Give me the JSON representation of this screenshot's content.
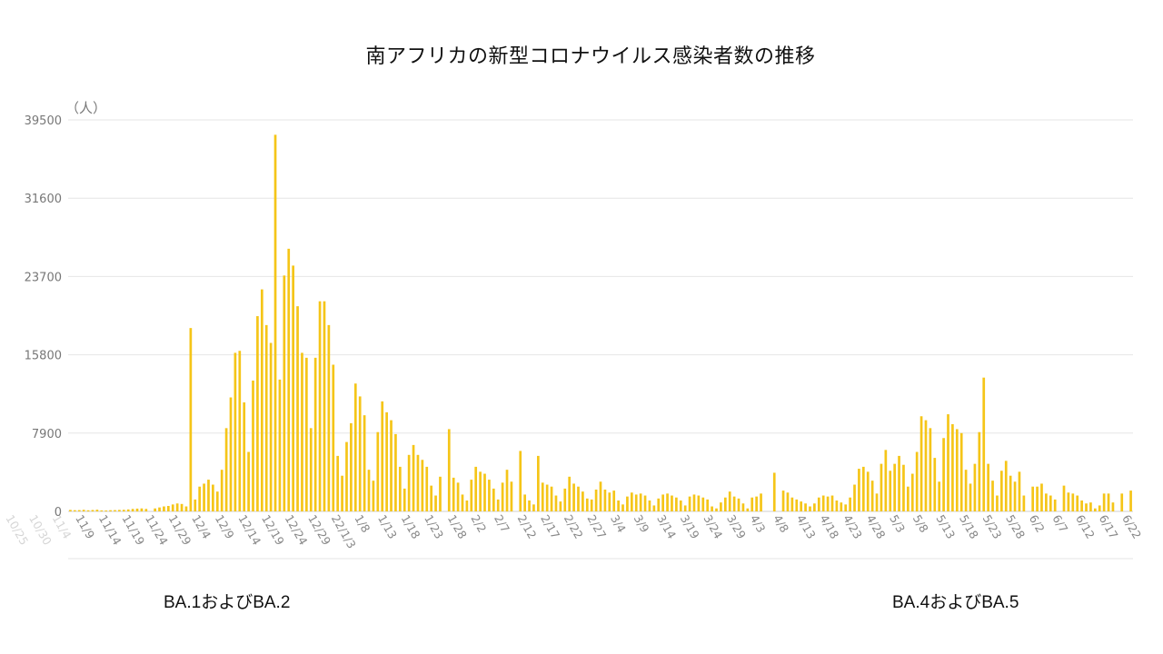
{
  "chart_data": {
    "type": "bar",
    "title": "南アフリカの新型コロナウイルス感染者数の推移",
    "unit_label": "（人）",
    "ylim": [
      0,
      39500
    ],
    "yticks": [
      0,
      7900,
      15800,
      23700,
      31600,
      39500
    ],
    "grid": true,
    "series_color": "#f5c518",
    "xticks": [
      "10/25",
      "10/30",
      "11/4",
      "11/9",
      "11/14",
      "11/19",
      "11/24",
      "11/29",
      "12/4",
      "12/9",
      "12/14",
      "12/19",
      "12/24",
      "12/29",
      "22/1/3",
      "1/8",
      "1/13",
      "1/18",
      "1/23",
      "1/28",
      "2/2",
      "2/7",
      "2/12",
      "2/17",
      "2/22",
      "2/27",
      "3/4",
      "3/9",
      "3/14",
      "3/19",
      "3/24",
      "3/29",
      "4/3",
      "4/8",
      "4/13",
      "4/18",
      "4/23",
      "4/28",
      "5/3",
      "5/8",
      "5/13",
      "5/18",
      "5/23",
      "5/28",
      "6/2",
      "6/7",
      "6/12",
      "6/17",
      "6/22"
    ],
    "values": [
      150,
      120,
      130,
      160,
      110,
      140,
      170,
      100,
      90,
      120,
      130,
      150,
      160,
      200,
      250,
      280,
      300,
      250,
      0,
      300,
      400,
      500,
      550,
      700,
      800,
      750,
      500,
      18500,
      1200,
      2500,
      2800,
      3200,
      2700,
      2000,
      4200,
      8400,
      11500,
      16000,
      16200,
      11000,
      6000,
      13200,
      19700,
      22400,
      18800,
      17000,
      38000,
      13300,
      23800,
      26500,
      24800,
      20700,
      16000,
      15500,
      8400,
      15500,
      21200,
      21200,
      18800,
      14800,
      5600,
      3600,
      7000,
      8900,
      12900,
      11600,
      9700,
      4200,
      3100,
      8000,
      11100,
      10000,
      9200,
      7800,
      4500,
      2300,
      5700,
      6700,
      5700,
      5200,
      4500,
      2600,
      1600,
      3500,
      0,
      8300,
      3400,
      2900,
      1700,
      1100,
      3200,
      4500,
      4000,
      3800,
      3200,
      2300,
      1200,
      2900,
      4200,
      3000,
      0,
      6100,
      1700,
      1100,
      700,
      5600,
      2900,
      2700,
      2500,
      1600,
      1000,
      2300,
      3500,
      2800,
      2500,
      2000,
      1300,
      1200,
      2200,
      3000,
      2200,
      1900,
      2100,
      1100,
      700,
      1500,
      1900,
      1700,
      1800,
      1600,
      1100,
      600,
      1300,
      1700,
      1800,
      1600,
      1400,
      1100,
      600,
      1500,
      1700,
      1600,
      1400,
      1200,
      500,
      300,
      900,
      1400,
      2000,
      1500,
      1300,
      800,
      300,
      1400,
      1500,
      1800,
      0,
      0,
      3900,
      0,
      2100,
      1900,
      1400,
      1200,
      1000,
      800,
      500,
      800,
      1400,
      1600,
      1500,
      1600,
      1100,
      900,
      700,
      1400,
      2700,
      4300,
      4500,
      4000,
      3100,
      1800,
      4800,
      6200,
      4100,
      4800,
      5600,
      4700,
      2500,
      3800,
      6000,
      9600,
      9200,
      8400,
      5400,
      3000,
      7400,
      9800,
      8800,
      8300,
      7900,
      4200,
      2800,
      4800,
      8000,
      13500,
      4800,
      3100,
      1600,
      4100,
      5100,
      3600,
      3000,
      4000,
      1600,
      0,
      2500,
      2500,
      2800,
      1800,
      1600,
      1200,
      0,
      2600,
      1900,
      1800,
      1600,
      1100,
      800,
      900,
      300,
      600,
      1800,
      1800,
      900,
      0,
      1800,
      0,
      2100
    ]
  },
  "annotations": {
    "left": "BA.1およびBA.2",
    "right": "BA.4およびBA.5"
  }
}
